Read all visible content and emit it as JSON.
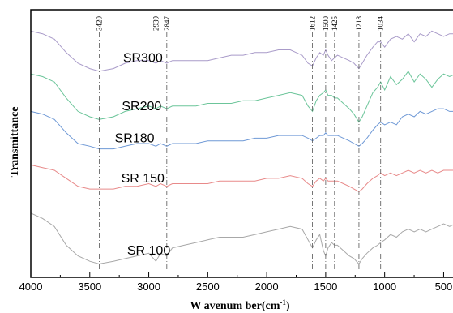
{
  "chart_data": {
    "type": "line",
    "title": "",
    "xlabel": "W avenum ber(cm",
    "xlabel_sup": "-1",
    "xlabel_close": ")",
    "ylabel": "Transmittance",
    "xlim": [
      4000,
      400
    ],
    "x_reversed": true,
    "x_ticks": [
      4000,
      3500,
      3000,
      2500,
      2000,
      1500,
      1000,
      500
    ],
    "x_tick_labels": [
      "4000",
      "3500",
      "3000",
      "2500",
      "2000",
      "1500",
      "1000",
      "500"
    ],
    "ylim": [
      0,
      100
    ],
    "grid": false,
    "annotations": [
      {
        "x": 3420,
        "label": "3420"
      },
      {
        "x": 2939,
        "label": "2939"
      },
      {
        "x": 2847,
        "label": "2847"
      },
      {
        "x": 1612,
        "label": "1612"
      },
      {
        "x": 1500,
        "label": "1500"
      },
      {
        "x": 1425,
        "label": "1425"
      },
      {
        "x": 1218,
        "label": "1218"
      },
      {
        "x": 1034,
        "label": "1034"
      }
    ],
    "series": [
      {
        "name": "SR300",
        "color": "#a99bc9",
        "points": [
          [
            4000,
            92
          ],
          [
            3900,
            91
          ],
          [
            3800,
            89
          ],
          [
            3700,
            84
          ],
          [
            3600,
            80
          ],
          [
            3500,
            78
          ],
          [
            3420,
            77
          ],
          [
            3300,
            78
          ],
          [
            3200,
            80
          ],
          [
            3100,
            81
          ],
          [
            3000,
            81
          ],
          [
            2939,
            80
          ],
          [
            2900,
            81
          ],
          [
            2847,
            80
          ],
          [
            2800,
            81
          ],
          [
            2700,
            81
          ],
          [
            2600,
            81
          ],
          [
            2500,
            81
          ],
          [
            2400,
            82
          ],
          [
            2300,
            83
          ],
          [
            2200,
            83
          ],
          [
            2100,
            84
          ],
          [
            2000,
            84
          ],
          [
            1900,
            85
          ],
          [
            1800,
            85
          ],
          [
            1700,
            83
          ],
          [
            1650,
            80
          ],
          [
            1612,
            79
          ],
          [
            1580,
            82
          ],
          [
            1550,
            84
          ],
          [
            1520,
            83
          ],
          [
            1500,
            85
          ],
          [
            1480,
            83
          ],
          [
            1450,
            81
          ],
          [
            1425,
            82
          ],
          [
            1400,
            83
          ],
          [
            1350,
            82
          ],
          [
            1300,
            81
          ],
          [
            1260,
            80
          ],
          [
            1218,
            78
          ],
          [
            1190,
            80
          ],
          [
            1150,
            83
          ],
          [
            1100,
            86
          ],
          [
            1060,
            88
          ],
          [
            1034,
            88
          ],
          [
            1000,
            86
          ],
          [
            950,
            89
          ],
          [
            900,
            90
          ],
          [
            850,
            89
          ],
          [
            800,
            91
          ],
          [
            750,
            88
          ],
          [
            700,
            91
          ],
          [
            650,
            90
          ],
          [
            600,
            92
          ],
          [
            550,
            91
          ],
          [
            500,
            90
          ],
          [
            450,
            91
          ],
          [
            400,
            91
          ]
        ]
      },
      {
        "name": "SR200",
        "color": "#6cc59a",
        "points": [
          [
            4000,
            76
          ],
          [
            3900,
            75
          ],
          [
            3800,
            73
          ],
          [
            3700,
            67
          ],
          [
            3600,
            62
          ],
          [
            3500,
            60
          ],
          [
            3420,
            59
          ],
          [
            3300,
            60
          ],
          [
            3200,
            62
          ],
          [
            3100,
            63
          ],
          [
            3000,
            64
          ],
          [
            2939,
            63
          ],
          [
            2900,
            64
          ],
          [
            2847,
            63
          ],
          [
            2800,
            64
          ],
          [
            2700,
            64
          ],
          [
            2600,
            64
          ],
          [
            2500,
            65
          ],
          [
            2400,
            65
          ],
          [
            2300,
            65
          ],
          [
            2200,
            66
          ],
          [
            2100,
            66
          ],
          [
            2000,
            67
          ],
          [
            1900,
            68
          ],
          [
            1800,
            69
          ],
          [
            1700,
            68
          ],
          [
            1650,
            64
          ],
          [
            1612,
            62
          ],
          [
            1580,
            66
          ],
          [
            1550,
            68
          ],
          [
            1520,
            69
          ],
          [
            1500,
            70
          ],
          [
            1480,
            68
          ],
          [
            1450,
            68
          ],
          [
            1425,
            67
          ],
          [
            1400,
            67
          ],
          [
            1350,
            65
          ],
          [
            1300,
            63
          ],
          [
            1260,
            61
          ],
          [
            1218,
            58
          ],
          [
            1190,
            60
          ],
          [
            1150,
            64
          ],
          [
            1100,
            69
          ],
          [
            1060,
            71
          ],
          [
            1034,
            73
          ],
          [
            1000,
            70
          ],
          [
            950,
            75
          ],
          [
            900,
            72
          ],
          [
            850,
            74
          ],
          [
            800,
            77
          ],
          [
            750,
            73
          ],
          [
            700,
            76
          ],
          [
            650,
            74
          ],
          [
            600,
            71
          ],
          [
            550,
            74
          ],
          [
            500,
            76
          ],
          [
            450,
            75
          ],
          [
            400,
            76
          ]
        ]
      },
      {
        "name": "SR180",
        "color": "#6f99d6",
        "points": [
          [
            4000,
            62
          ],
          [
            3900,
            61
          ],
          [
            3800,
            59
          ],
          [
            3700,
            54
          ],
          [
            3600,
            50
          ],
          [
            3500,
            49
          ],
          [
            3420,
            48
          ],
          [
            3300,
            48
          ],
          [
            3200,
            49
          ],
          [
            3100,
            50
          ],
          [
            3000,
            50
          ],
          [
            2939,
            49
          ],
          [
            2900,
            50
          ],
          [
            2847,
            49
          ],
          [
            2800,
            50
          ],
          [
            2700,
            50
          ],
          [
            2600,
            50
          ],
          [
            2500,
            51
          ],
          [
            2400,
            51
          ],
          [
            2300,
            51
          ],
          [
            2200,
            51
          ],
          [
            2100,
            52
          ],
          [
            2000,
            52
          ],
          [
            1900,
            53
          ],
          [
            1800,
            53
          ],
          [
            1700,
            53
          ],
          [
            1650,
            52
          ],
          [
            1612,
            51
          ],
          [
            1580,
            52
          ],
          [
            1550,
            53
          ],
          [
            1520,
            53
          ],
          [
            1500,
            54
          ],
          [
            1480,
            53
          ],
          [
            1450,
            53
          ],
          [
            1425,
            53
          ],
          [
            1400,
            53
          ],
          [
            1350,
            52
          ],
          [
            1300,
            51
          ],
          [
            1260,
            50
          ],
          [
            1218,
            49
          ],
          [
            1190,
            50
          ],
          [
            1150,
            52
          ],
          [
            1100,
            55
          ],
          [
            1060,
            57
          ],
          [
            1034,
            58
          ],
          [
            1000,
            57
          ],
          [
            950,
            58
          ],
          [
            900,
            57
          ],
          [
            850,
            60
          ],
          [
            800,
            61
          ],
          [
            750,
            60
          ],
          [
            700,
            62
          ],
          [
            650,
            61
          ],
          [
            600,
            62
          ],
          [
            550,
            63
          ],
          [
            500,
            63
          ],
          [
            450,
            62
          ],
          [
            400,
            62
          ]
        ]
      },
      {
        "name": "SR 150",
        "color": "#e88a8a",
        "points": [
          [
            4000,
            42
          ],
          [
            3900,
            41
          ],
          [
            3800,
            40
          ],
          [
            3700,
            37
          ],
          [
            3600,
            34
          ],
          [
            3500,
            33
          ],
          [
            3420,
            33
          ],
          [
            3300,
            33
          ],
          [
            3200,
            34
          ],
          [
            3100,
            34
          ],
          [
            3000,
            35
          ],
          [
            2939,
            34
          ],
          [
            2900,
            35
          ],
          [
            2847,
            34
          ],
          [
            2800,
            35
          ],
          [
            2700,
            35
          ],
          [
            2600,
            35
          ],
          [
            2500,
            35
          ],
          [
            2400,
            36
          ],
          [
            2300,
            36
          ],
          [
            2200,
            36
          ],
          [
            2100,
            36
          ],
          [
            2000,
            37
          ],
          [
            1900,
            37
          ],
          [
            1800,
            38
          ],
          [
            1700,
            37
          ],
          [
            1650,
            35
          ],
          [
            1612,
            34
          ],
          [
            1580,
            36
          ],
          [
            1550,
            37
          ],
          [
            1520,
            36
          ],
          [
            1500,
            37
          ],
          [
            1480,
            36
          ],
          [
            1450,
            36
          ],
          [
            1425,
            36
          ],
          [
            1400,
            36
          ],
          [
            1350,
            35
          ],
          [
            1300,
            34
          ],
          [
            1260,
            33
          ],
          [
            1218,
            32
          ],
          [
            1190,
            33
          ],
          [
            1150,
            35
          ],
          [
            1100,
            37
          ],
          [
            1060,
            38
          ],
          [
            1034,
            39
          ],
          [
            1000,
            38
          ],
          [
            950,
            39
          ],
          [
            900,
            38
          ],
          [
            850,
            39
          ],
          [
            800,
            40
          ],
          [
            750,
            39
          ],
          [
            700,
            40
          ],
          [
            650,
            39
          ],
          [
            600,
            40
          ],
          [
            550,
            39
          ],
          [
            500,
            40
          ],
          [
            450,
            40
          ],
          [
            400,
            40
          ]
        ]
      },
      {
        "name": "SR 100",
        "color": "#a8a8a8",
        "points": [
          [
            4000,
            24
          ],
          [
            3900,
            22
          ],
          [
            3800,
            19
          ],
          [
            3700,
            12
          ],
          [
            3600,
            8
          ],
          [
            3500,
            6
          ],
          [
            3420,
            5
          ],
          [
            3300,
            6
          ],
          [
            3200,
            7
          ],
          [
            3100,
            8
          ],
          [
            3000,
            9
          ],
          [
            2939,
            6
          ],
          [
            2900,
            9
          ],
          [
            2847,
            8
          ],
          [
            2800,
            11
          ],
          [
            2700,
            12
          ],
          [
            2600,
            13
          ],
          [
            2500,
            14
          ],
          [
            2400,
            15
          ],
          [
            2300,
            15
          ],
          [
            2200,
            15
          ],
          [
            2100,
            16
          ],
          [
            2000,
            17
          ],
          [
            1900,
            18
          ],
          [
            1800,
            19
          ],
          [
            1700,
            18
          ],
          [
            1650,
            14
          ],
          [
            1612,
            11
          ],
          [
            1580,
            14
          ],
          [
            1550,
            16
          ],
          [
            1520,
            10
          ],
          [
            1500,
            8
          ],
          [
            1480,
            11
          ],
          [
            1450,
            13
          ],
          [
            1425,
            12
          ],
          [
            1400,
            12
          ],
          [
            1350,
            10
          ],
          [
            1300,
            8
          ],
          [
            1260,
            7
          ],
          [
            1218,
            5
          ],
          [
            1190,
            7
          ],
          [
            1150,
            9
          ],
          [
            1100,
            11
          ],
          [
            1060,
            12
          ],
          [
            1034,
            13
          ],
          [
            1000,
            14
          ],
          [
            950,
            16
          ],
          [
            900,
            15
          ],
          [
            850,
            17
          ],
          [
            800,
            18
          ],
          [
            750,
            17
          ],
          [
            700,
            18
          ],
          [
            650,
            17
          ],
          [
            600,
            18
          ],
          [
            550,
            19
          ],
          [
            500,
            20
          ],
          [
            450,
            19
          ],
          [
            400,
            20
          ]
        ]
      }
    ]
  }
}
